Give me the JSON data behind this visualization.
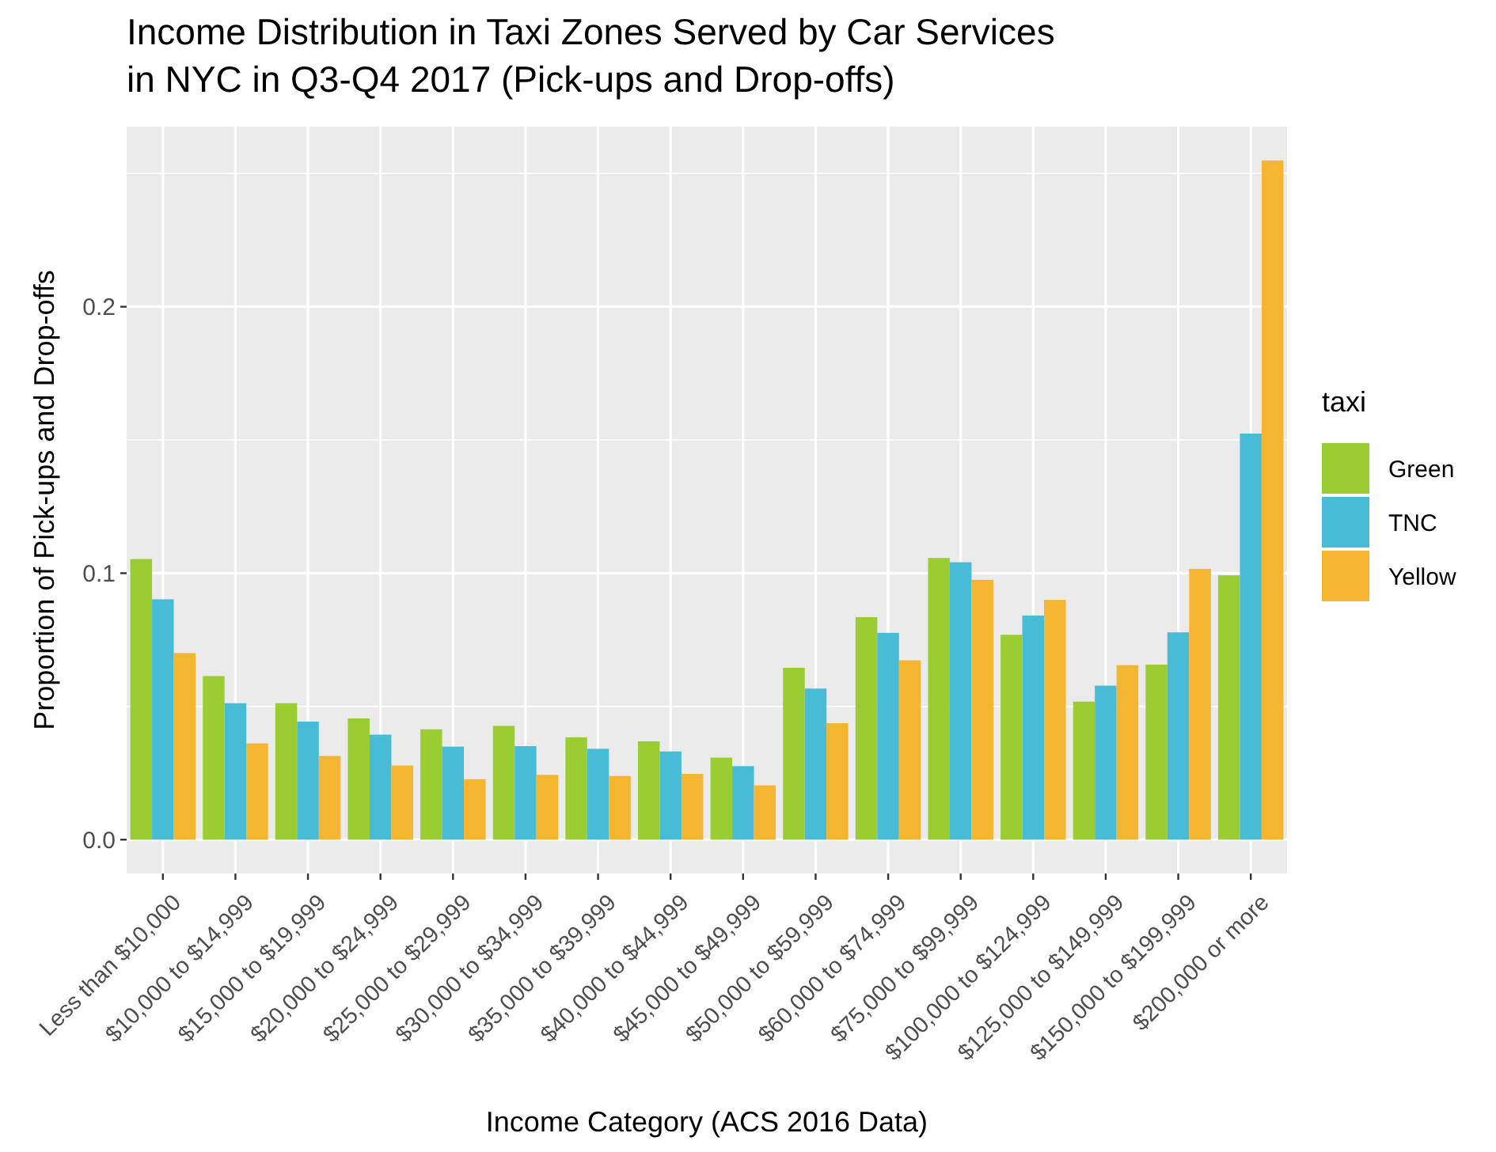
{
  "chart_data": {
    "type": "bar",
    "title": "Income Distribution in Taxi Zones Served by Car Services\nin NYC in Q3-Q4 2017 (Pick-ups and Drop-offs)",
    "xlabel": "Income Category (ACS 2016 Data)",
    "ylabel": "Proportion of Pick-ups and Drop-offs",
    "legend_title": "taxi",
    "categories": [
      "Less than $10,000",
      "$10,000 to $14,999",
      "$15,000 to $19,999",
      "$20,000 to $24,999",
      "$25,000 to $29,999",
      "$30,000 to $34,999",
      "$35,000 to $39,999",
      "$40,000 to $44,999",
      "$45,000 to $49,999",
      "$50,000 to $59,999",
      "$60,000 to $74,999",
      "$75,000 to $99,999",
      "$100,000 to $124,999",
      "$125,000 to $149,999",
      "$150,000 to $199,999",
      "$200,000 or more"
    ],
    "series": [
      {
        "name": "Green",
        "color": "#9acd32",
        "values": [
          0.1053,
          0.0614,
          0.0512,
          0.0455,
          0.0414,
          0.0427,
          0.0384,
          0.0369,
          0.0308,
          0.0645,
          0.0835,
          0.1057,
          0.0769,
          0.0518,
          0.0657,
          0.0992
        ]
      },
      {
        "name": "TNC",
        "color": "#48bcd6",
        "values": [
          0.0902,
          0.0512,
          0.0443,
          0.0394,
          0.0349,
          0.0351,
          0.0341,
          0.0331,
          0.0276,
          0.0567,
          0.0776,
          0.1041,
          0.0841,
          0.0578,
          0.0778,
          0.1524
        ]
      },
      {
        "name": "Yellow",
        "color": "#f4b530",
        "values": [
          0.07,
          0.0361,
          0.0314,
          0.0278,
          0.0227,
          0.0243,
          0.0239,
          0.0247,
          0.0204,
          0.0437,
          0.0673,
          0.0975,
          0.09,
          0.0655,
          0.1016,
          0.2549
        ]
      }
    ],
    "ylim": [
      -0.0127,
      0.2676
    ],
    "yticks": [
      {
        "value": 0,
        "label": "0.0"
      },
      {
        "value": 0.1,
        "label": "0.1"
      },
      {
        "value": 0.2,
        "label": "0.2"
      }
    ],
    "grid": true,
    "legend": "right"
  }
}
